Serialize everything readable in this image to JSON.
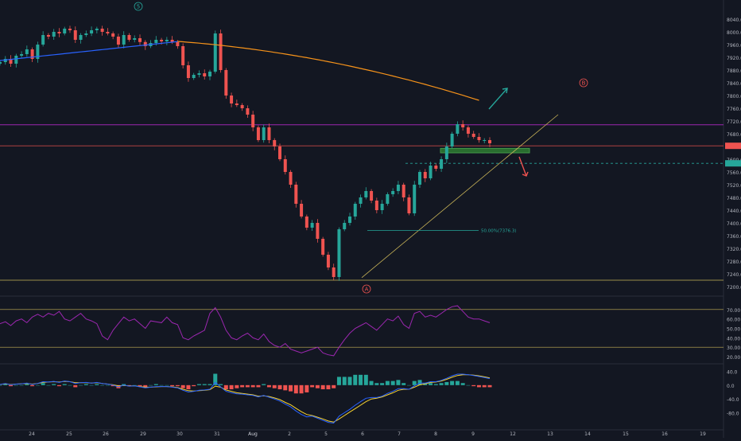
{
  "chart_data": [
    {
      "type": "candlestick",
      "panel": "price",
      "ylim": [
        7180,
        8080
      ],
      "y_ticks": [
        "8040.0",
        "8000.0",
        "7960.0",
        "7920.0",
        "7880.0",
        "7840.0",
        "7800.0",
        "7760.0",
        "7720.0",
        "7680.0",
        "7640.0",
        "7600.0",
        "7560.0",
        "7520.0",
        "7480.0",
        "7440.0",
        "7400.0",
        "7360.0",
        "7320.0",
        "7280.0",
        "7240.0",
        "7200.0"
      ],
      "x_ticks": [
        "24",
        "25",
        "26",
        "29",
        "30",
        "31",
        "Aug",
        "2",
        "5",
        "6",
        "7",
        "8",
        "9",
        "12",
        "13",
        "14",
        "15",
        "16",
        "19"
      ],
      "annotations": {
        "wave_5": "5",
        "wave_A": "A",
        "wave_B": "B",
        "fib_label": "50.00%(7376.3)"
      },
      "levels": {
        "upper_line": 7708,
        "red_line": 7642,
        "green_dashed": 7587,
        "bottom_line": 7220,
        "green_box": [
          7620,
          7634
        ],
        "fib_50": 7376.3
      },
      "price_marker_red": 7642,
      "price_marker_green": 7587,
      "colors": {
        "up": "#26a69a",
        "down": "#ef5350",
        "ma_orange": "#f7931a",
        "ma_blue": "#2962ff",
        "purple_line": "#9c27b0",
        "trend_line": "#c9b458",
        "green_arrow": "#26a69a",
        "red_arrow": "#ef5350"
      },
      "close_path": [
        7905,
        7915,
        7900,
        7925,
        7930,
        7945,
        7915,
        7960,
        7990,
        7985,
        8000,
        7995,
        8010,
        8005,
        7975,
        7990,
        7995,
        8005,
        8010,
        8000,
        7995,
        7985,
        7960,
        7990,
        7975,
        7980,
        7968,
        7955,
        7965,
        7975,
        7970,
        7975,
        7968,
        7955,
        7895,
        7855,
        7865,
        7870,
        7860,
        7875,
        7995,
        7880,
        7800,
        7775,
        7770,
        7760,
        7740,
        7700,
        7660,
        7700,
        7660,
        7640,
        7600,
        7560,
        7520,
        7460,
        7420,
        7385,
        7400,
        7350,
        7300,
        7260,
        7230,
        7380,
        7400,
        7420,
        7460,
        7480,
        7500,
        7470,
        7440,
        7460,
        7490,
        7500,
        7520,
        7480,
        7430,
        7520,
        7560,
        7540,
        7580,
        7570,
        7600,
        7640,
        7680,
        7710,
        7700,
        7680,
        7670,
        7660,
        7660,
        7650
      ]
    },
    {
      "type": "line",
      "panel": "rsi",
      "ylim": [
        15,
        80
      ],
      "y_ticks": [
        "70.00",
        "60.00",
        "50.00",
        "40.00",
        "30.00",
        "20.00"
      ],
      "levels": [
        70,
        30
      ],
      "colors": {
        "line": "#9c27b0"
      },
      "series": [
        {
          "values": [
            55,
            57,
            53,
            58,
            60,
            56,
            62,
            65,
            62,
            66,
            64,
            68,
            60,
            58,
            62,
            66,
            60,
            58,
            55,
            42,
            38,
            48,
            55,
            62,
            58,
            60,
            55,
            50,
            58,
            57,
            56,
            62,
            56,
            54,
            40,
            38,
            42,
            45,
            48,
            66,
            72,
            62,
            48,
            40,
            38,
            42,
            45,
            40,
            38,
            44,
            36,
            32,
            30,
            34,
            28,
            26,
            24,
            26,
            28,
            30,
            24,
            22,
            21,
            30,
            38,
            45,
            50,
            53,
            56,
            52,
            48,
            54,
            60,
            58,
            63,
            54,
            50,
            66,
            68,
            62,
            64,
            62,
            66,
            70,
            73,
            74,
            68,
            62,
            60,
            60,
            58,
            56
          ]
        }
      ]
    },
    {
      "type": "line+bar",
      "panel": "macd",
      "ylim": [
        -125,
        55
      ],
      "y_ticks": [
        "40.0",
        "0.0",
        "-40.0",
        "-80.0"
      ],
      "colors": {
        "macd": "#2962ff",
        "signal": "#f7d330",
        "hist_up": "#26a69a",
        "hist_down": "#ef5350"
      },
      "series": [
        {
          "values": [
            2,
            5,
            1,
            3,
            4,
            6,
            2,
            5,
            10,
            9,
            11,
            8,
            12,
            10,
            5,
            7,
            8,
            6,
            8,
            5,
            3,
            0,
            -5,
            0,
            -3,
            -2,
            -5,
            -8,
            -6,
            -4,
            -4,
            -4,
            -6,
            -8,
            -15,
            -20,
            -18,
            -15,
            -14,
            -12,
            8,
            -5,
            -18,
            -22,
            -25,
            -26,
            -28,
            -30,
            -34,
            -30,
            -35,
            -40,
            -46,
            -55,
            -63,
            -75,
            -85,
            -92,
            -90,
            -96,
            -102,
            -108,
            -110,
            -90,
            -80,
            -70,
            -58,
            -48,
            -38,
            -36,
            -36,
            -32,
            -24,
            -18,
            -10,
            -10,
            -12,
            -2,
            6,
            6,
            10,
            10,
            14,
            20,
            27,
            32,
            32,
            30,
            28,
            25,
            22,
            19
          ]
        },
        {
          "values": [
            2,
            4,
            2,
            3,
            4,
            5,
            3,
            5,
            8,
            9,
            10,
            9,
            11,
            10,
            7,
            7,
            7,
            6,
            7,
            5,
            3,
            1,
            -2,
            -1,
            -2,
            -2,
            -4,
            -6,
            -6,
            -5,
            -4,
            -4,
            -5,
            -7,
            -12,
            -16,
            -17,
            -16,
            -15,
            -13,
            -3,
            -6,
            -14,
            -18,
            -22,
            -24,
            -26,
            -28,
            -32,
            -31,
            -33,
            -37,
            -42,
            -50,
            -57,
            -67,
            -77,
            -85,
            -88,
            -93,
            -98,
            -104,
            -107,
            -98,
            -88,
            -78,
            -68,
            -58,
            -48,
            -40,
            -38,
            -34,
            -28,
            -22,
            -15,
            -12,
            -12,
            -6,
            1,
            4,
            8,
            9,
            12,
            17,
            23,
            28,
            30,
            30,
            29,
            27,
            24,
            21
          ]
        }
      ],
      "histogram": [
        0,
        1,
        -1,
        0,
        0,
        1,
        -1,
        0,
        2,
        0,
        1,
        -1,
        1,
        0,
        -2,
        0,
        1,
        0,
        1,
        0,
        0,
        -1,
        -3,
        1,
        -1,
        0,
        -1,
        -2,
        0,
        1,
        0,
        0,
        -1,
        -1,
        -3,
        -4,
        -1,
        1,
        1,
        1,
        11,
        1,
        -4,
        -4,
        -3,
        -2,
        -2,
        -2,
        -2,
        1,
        -2,
        -3,
        -4,
        -5,
        -6,
        -8,
        -8,
        -7,
        -2,
        -3,
        -4,
        -4,
        -3,
        8,
        8,
        8,
        10,
        10,
        10,
        4,
        2,
        2,
        4,
        4,
        5,
        2,
        0,
        4,
        5,
        2,
        2,
        1,
        2,
        3,
        4,
        4,
        2,
        0,
        -1,
        -2,
        -2,
        -2
      ]
    }
  ]
}
